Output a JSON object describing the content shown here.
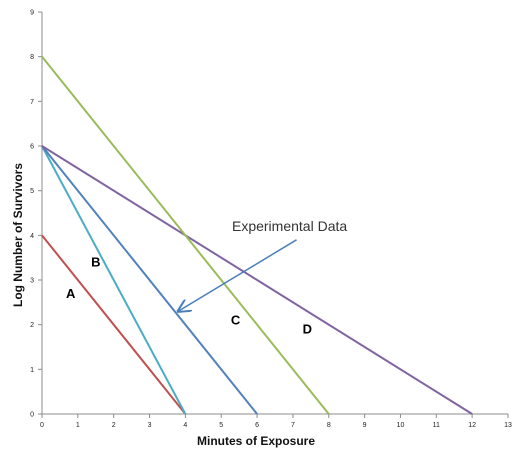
{
  "chart_data": {
    "type": "line",
    "title": "",
    "xlabel": "Minutes of Exposure",
    "ylabel": "Log Number of Survivors",
    "xlim": [
      0,
      13
    ],
    "ylim": [
      0,
      9
    ],
    "xticks": [
      0,
      1,
      2,
      3,
      4,
      5,
      6,
      7,
      8,
      9,
      10,
      11,
      12,
      13
    ],
    "yticks": [
      0,
      1,
      2,
      3,
      4,
      5,
      6,
      7,
      8,
      9
    ],
    "grid": false,
    "series": [
      {
        "name": "A",
        "color": "#c0504d",
        "points": [
          [
            0,
            4
          ],
          [
            4,
            0
          ]
        ],
        "label_at": [
          0.8,
          2.6
        ]
      },
      {
        "name": "B",
        "color": "#4bacc6",
        "points": [
          [
            0,
            6
          ],
          [
            4,
            0
          ]
        ],
        "label_at": [
          1.5,
          3.3
        ]
      },
      {
        "name": "C",
        "color": "#4f81bd",
        "points": [
          [
            0,
            6
          ],
          [
            6,
            0
          ]
        ],
        "label_at": [
          5.4,
          2.0
        ]
      },
      {
        "name": "D",
        "color": "#8064a2",
        "points": [
          [
            0,
            6
          ],
          [
            12,
            0
          ]
        ],
        "label_at": [
          7.4,
          1.8
        ]
      },
      {
        "name": "",
        "color": "#9bbb59",
        "points": [
          [
            0,
            8
          ],
          [
            8,
            0
          ]
        ]
      }
    ],
    "annotation": {
      "text": "Experimental Data",
      "text_at": [
        5.3,
        4.1
      ],
      "arrow_from": [
        7.1,
        3.9
      ],
      "arrow_to": [
        3.8,
        2.3
      ],
      "color": "#4a7ebb"
    }
  }
}
